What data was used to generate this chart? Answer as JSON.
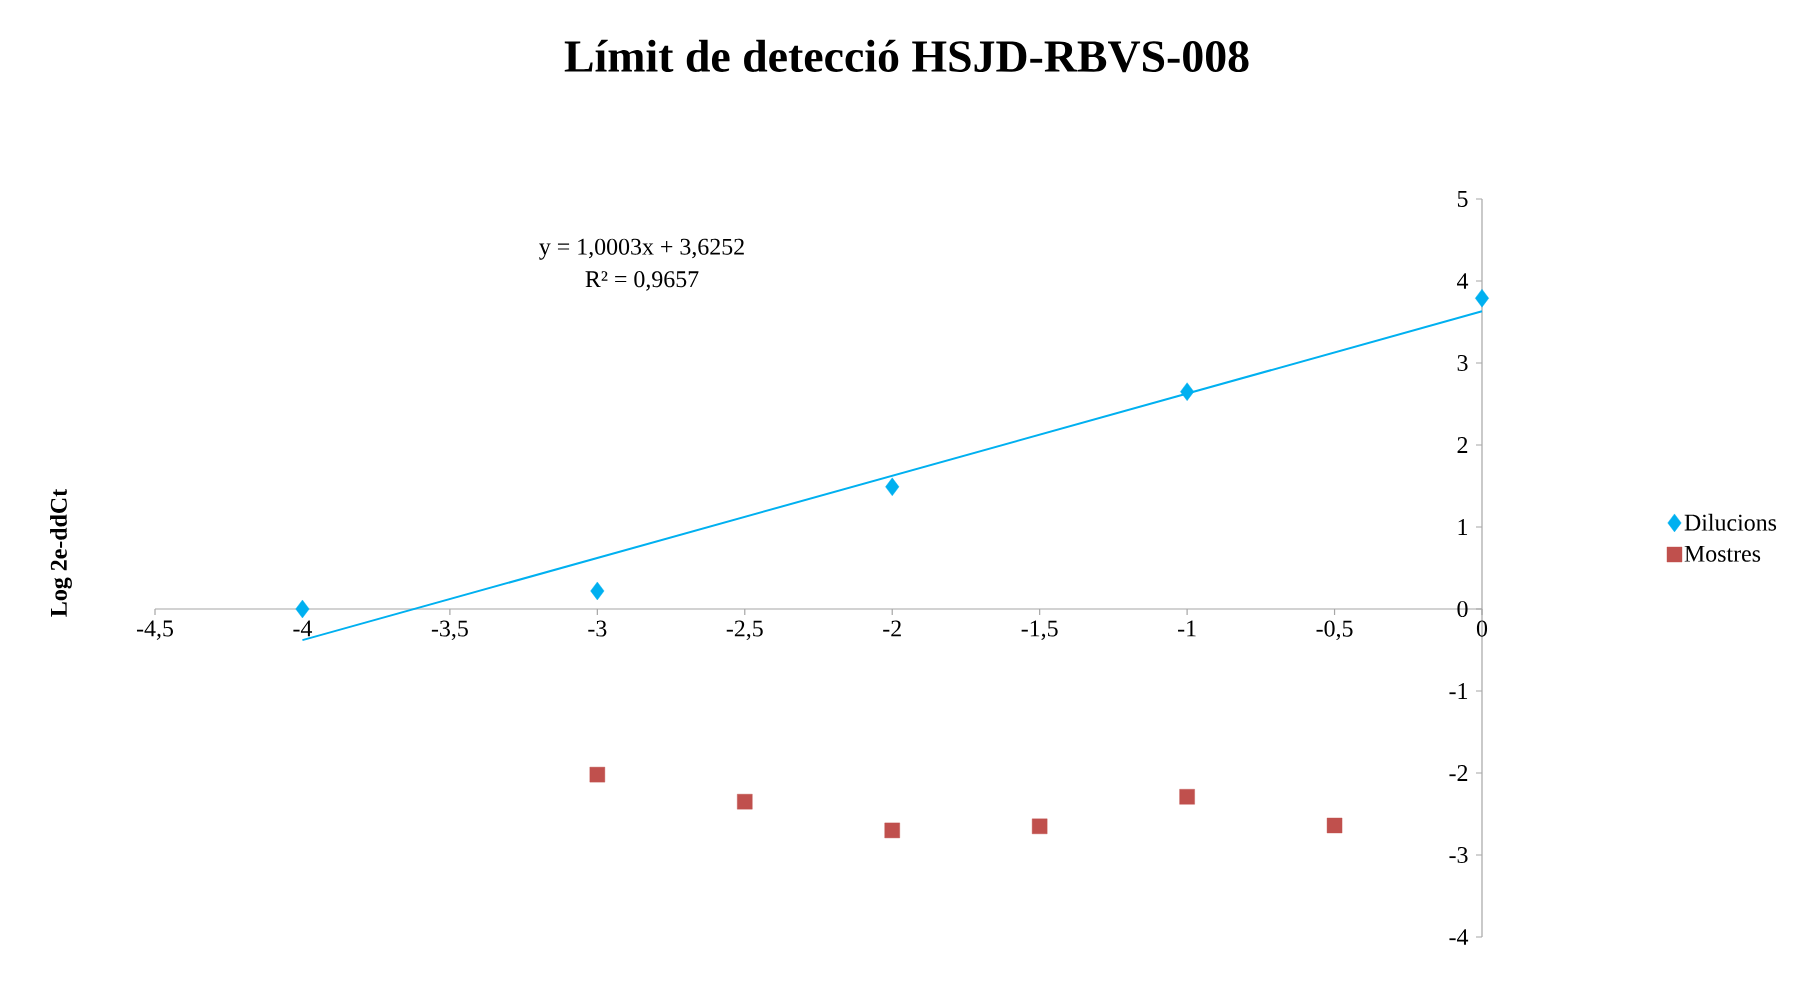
{
  "chart_data": {
    "type": "scatter",
    "title": "Límit de detecció HSJD-RBVS-008",
    "ylabel": "Log 2e-ddCt",
    "annotations": [
      "y = 1,0003x + 3,6252",
      "R² = 0,9657"
    ],
    "series": [
      {
        "name": "Dilucions",
        "color": "#00b0f0",
        "marker": "diamond",
        "x": [
          -4,
          -3,
          -2,
          -1,
          0
        ],
        "values": [
          0,
          0.22,
          1.49,
          2.65,
          3.79
        ]
      },
      {
        "name": "Mostres",
        "color": "#c0504d",
        "marker": "square",
        "x": [
          -3,
          -2.5,
          -2,
          -1.5,
          -1,
          -0.5
        ],
        "values": [
          -2.02,
          -2.35,
          -2.7,
          -2.65,
          -2.29,
          -2.64
        ]
      },
      {
        "type": "line",
        "color": "#00b0f0",
        "x": [
          -4,
          0
        ],
        "values": [
          -0.38,
          3.63
        ]
      }
    ],
    "xlim": [
      -4.5,
      0
    ],
    "ylim": [
      -4,
      5
    ],
    "xticks": [
      {
        "value": -4.5,
        "label": "-4,5"
      },
      -4,
      {
        "value": -3.5,
        "label": "-3,5"
      },
      -3,
      {
        "value": -2.5,
        "label": "-2,5"
      },
      -2,
      {
        "value": -1.5,
        "label": "-1,5"
      },
      -1,
      {
        "value": -0.5,
        "label": "-0,5"
      },
      0
    ],
    "yticks": [
      -4,
      -3,
      -2,
      -1,
      0,
      1,
      2,
      3,
      4,
      5
    ],
    "legend": "right"
  }
}
